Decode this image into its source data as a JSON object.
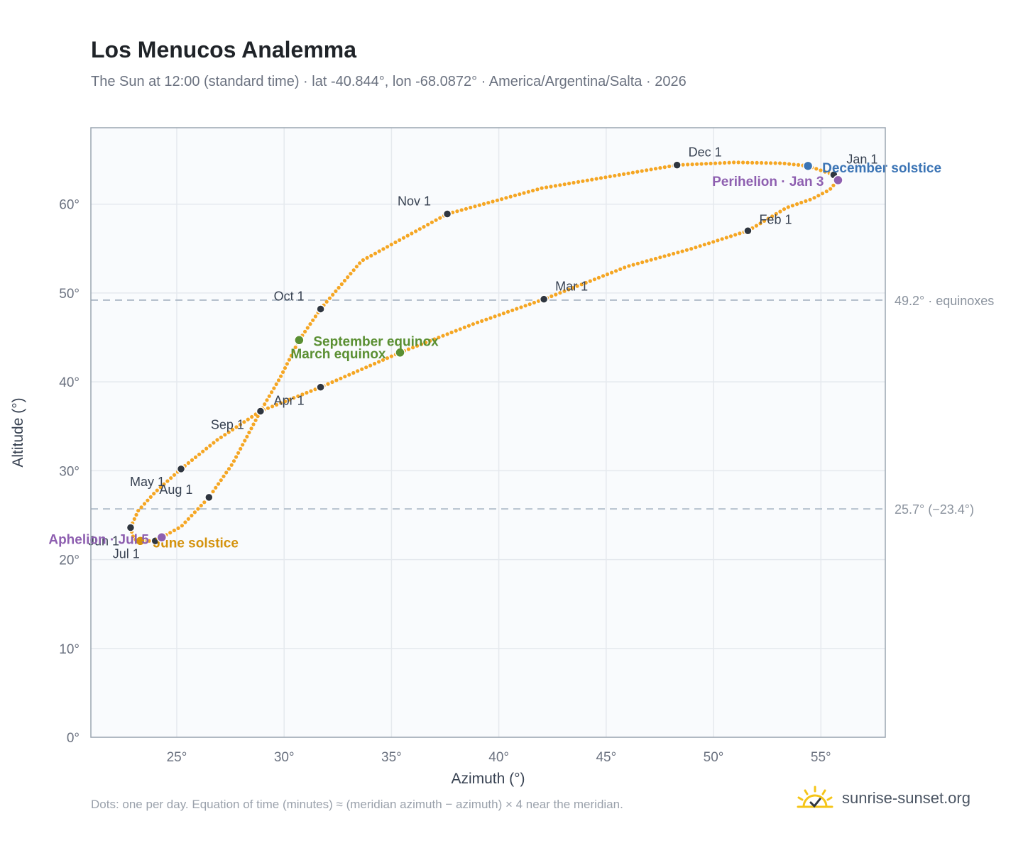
{
  "header": {
    "title": "Los Menucos Analemma",
    "subtitle": "The Sun at 12:00 (standard time) · lat -40.844°, lon -68.0872° · America/Argentina/Salta · 2026"
  },
  "footer": {
    "note": "Dots: one per day. Equation of time (minutes) ≈ (meridian azimuth − azimuth) × 4 near the meridian.",
    "brand": "sunrise-sunset.org",
    "brand_icon": "sun-logo-icon"
  },
  "colors": {
    "curve": "#f5a623",
    "month_marker": "#2f3640",
    "equinox": "#5a8f32",
    "june_solstice": "#d4920c",
    "december_solstice": "#3b74b5",
    "apsis": "#8e5fb0",
    "reference_line": "#aebbc8",
    "grid": "#e5e9ee",
    "plot_bg": "#f9fbfd"
  },
  "chart_data": {
    "type": "scatter",
    "xlabel": "Azimuth (°)",
    "ylabel": "Altitude (°)",
    "xlim": [
      21,
      58
    ],
    "ylim": [
      0,
      68.6
    ],
    "xticks": [
      25,
      30,
      35,
      40,
      45,
      50,
      55
    ],
    "yticks": [
      0,
      10,
      20,
      30,
      40,
      50,
      60
    ],
    "xtick_labels": [
      "25°",
      "30°",
      "35°",
      "40°",
      "45°",
      "50°",
      "55°"
    ],
    "ytick_labels": [
      "0°",
      "10°",
      "20°",
      "30°",
      "40°",
      "50°",
      "60°"
    ],
    "grid": true,
    "analemma_path": [
      [
        55.6,
        63.3
      ],
      [
        55.8,
        62.7
      ],
      [
        55.4,
        61.6
      ],
      [
        54.6,
        60.6
      ],
      [
        53.4,
        59.6
      ],
      [
        51.6,
        57.0
      ],
      [
        49.0,
        55.0
      ],
      [
        46.0,
        53.0
      ],
      [
        42.1,
        49.3
      ],
      [
        38.8,
        46.5
      ],
      [
        35.4,
        43.3
      ],
      [
        31.7,
        39.4
      ],
      [
        28.9,
        36.7
      ],
      [
        26.9,
        33.5
      ],
      [
        25.2,
        30.2
      ],
      [
        24.0,
        27.6
      ],
      [
        23.2,
        25.5
      ],
      [
        22.85,
        23.6
      ],
      [
        23.0,
        22.3
      ],
      [
        23.4,
        22.1
      ],
      [
        24.0,
        22.1
      ],
      [
        24.3,
        22.5
      ],
      [
        25.2,
        23.7
      ],
      [
        26.5,
        27.0
      ],
      [
        27.6,
        30.8
      ],
      [
        28.9,
        36.7
      ],
      [
        29.8,
        40.4
      ],
      [
        30.7,
        44.7
      ],
      [
        31.7,
        48.2
      ],
      [
        33.6,
        53.6
      ],
      [
        37.6,
        58.9
      ],
      [
        42.0,
        61.8
      ],
      [
        48.3,
        64.4
      ],
      [
        51.0,
        64.7
      ],
      [
        53.2,
        64.6
      ],
      [
        54.4,
        64.3
      ],
      [
        55.6,
        63.3
      ]
    ],
    "month_markers": [
      {
        "label": "Jan 1",
        "az": 55.6,
        "alt": 63.3
      },
      {
        "label": "Feb 1",
        "az": 51.6,
        "alt": 57.0
      },
      {
        "label": "Mar 1",
        "az": 42.1,
        "alt": 49.3
      },
      {
        "label": "Apr 1",
        "az": 31.7,
        "alt": 39.4
      },
      {
        "label": "May 1",
        "az": 25.2,
        "alt": 30.2
      },
      {
        "label": "Jun 1",
        "az": 22.85,
        "alt": 23.6
      },
      {
        "label": "Jul 1",
        "az": 24.0,
        "alt": 22.1
      },
      {
        "label": "Aug 1",
        "az": 26.5,
        "alt": 27.0
      },
      {
        "label": "Sep 1",
        "az": 28.9,
        "alt": 36.7
      },
      {
        "label": "Oct 1",
        "az": 31.7,
        "alt": 48.2
      },
      {
        "label": "Nov 1",
        "az": 37.6,
        "alt": 58.9
      },
      {
        "label": "Dec 1",
        "az": 48.3,
        "alt": 64.4
      }
    ],
    "events": [
      {
        "label": "December solstice",
        "az": 54.4,
        "alt": 64.3,
        "kind": "december_solstice"
      },
      {
        "label": "Perihelion · Jan 3",
        "az": 55.8,
        "alt": 62.7,
        "kind": "apsis"
      },
      {
        "label": "March equinox",
        "az": 35.4,
        "alt": 43.3,
        "kind": "equinox"
      },
      {
        "label": "September equinox",
        "az": 30.7,
        "alt": 44.7,
        "kind": "equinox"
      },
      {
        "label": "June solstice",
        "az": 23.3,
        "alt": 22.1,
        "kind": "june_solstice"
      },
      {
        "label": "Aphelion · Jul 5",
        "az": 24.3,
        "alt": 22.5,
        "kind": "apsis"
      }
    ],
    "reference_lines": [
      {
        "alt": 49.2,
        "label": "49.2° · equinoxes"
      },
      {
        "alt": 25.7,
        "label": "25.7° (−23.4°)"
      }
    ]
  }
}
